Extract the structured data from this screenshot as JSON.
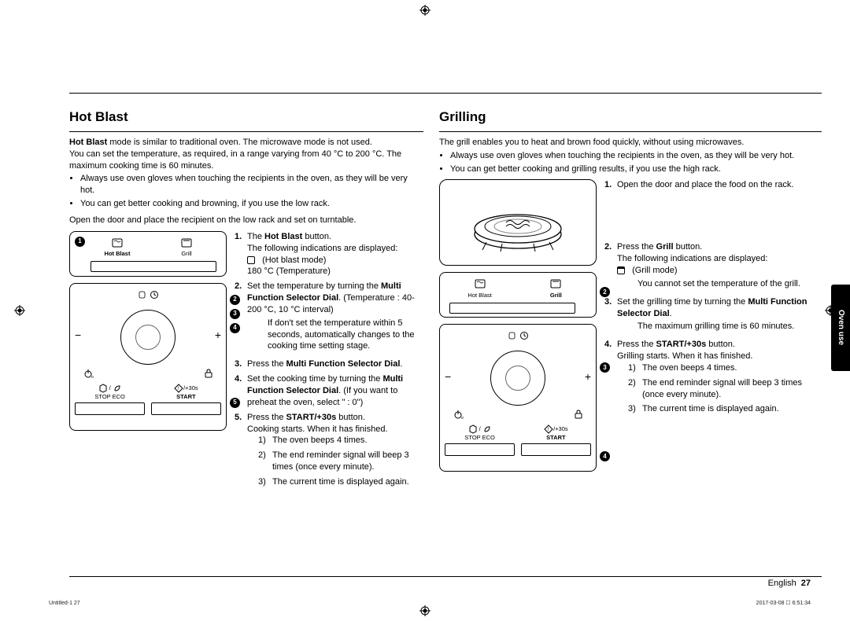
{
  "sidebar": {
    "label": "Oven use"
  },
  "footer": {
    "lang": "English",
    "page": "27",
    "doc_ref": "Untitled-1  27",
    "timestamp": "2017-03-08  ☐ 6:51:34"
  },
  "hotblast": {
    "title": "Hot Blast",
    "intro1_html": "<b>Hot Blast</b> mode is similar to traditional oven. The microwave mode is not used.",
    "intro2": "You can set the temperature, as required, in a range varying from 40 °C to 200 °C. The maximum cooking time is 60 minutes.",
    "bul1": "Always use oven gloves when touching the recipients in the oven, as they will be very hot.",
    "bul2": "You can get better cooking and browning, if you use the low rack.",
    "prestep": "Open the door and place the recipient on the low rack and set on turntable.",
    "s1_html": "The <b>Hot Blast</b> button.",
    "s1b": "The following indications are displayed:",
    "s1c": "(Hot blast mode)",
    "s1d": "180 °C   (Temperature)",
    "s2_html": "Set the temperature by turning the <b>Multi Function Selector Dial</b>. (Temperature : 40-200 °C, 10 °C interval)",
    "s2sub": "If don't set the temperature within 5 seconds, automatically changes to the cooking time setting stage.",
    "s3_html": "Press the <b>Multi Function Selector Dial</b>.",
    "s4_html": "Set the cooking time by turning the <b>Multi Function Selector Dial</b>. (If you want to preheat the oven, select \" : 0\")",
    "s5_html": "Press the <b>START/+30s</b> button.",
    "s5b": "Cooking starts. When it has finished.",
    "s5_1": "The oven beeps 4 times.",
    "s5_2": "The end reminder signal will beep 3 times (once every minute).",
    "s5_3": "The current time is displayed again.",
    "panel": {
      "hotblast_label": "Hot Blast",
      "grill_label": "Grill",
      "stop_eco": "STOP  ECO",
      "start": "START",
      "plus30": "/+30s"
    }
  },
  "grilling": {
    "title": "Grilling",
    "intro1": "The grill enables you to heat and brown food quickly, without using microwaves.",
    "bul1": "Always use oven gloves when touching the recipients in the oven, as they will be very hot.",
    "bul2": "You can get better cooking and grilling results, if you use the high rack.",
    "s1": "Open the door and place the food on the rack.",
    "s2_html": "Press the <b>Grill</b> button.",
    "s2a": "The following indications are displayed:",
    "s2b": "(Grill mode)",
    "s2sub": "You cannot set the temperature of the grill.",
    "s3_html": "Set the grilling time by turning the <b>Multi Function Selector Dial</b>.",
    "s3sub": "The maximum grilling time is 60 minutes.",
    "s4_html": "Press the <b>START/+30s</b> button.",
    "s4a": "Grilling starts. When it has finished.",
    "s4_1": "The oven beeps 4 times.",
    "s4_2": "The end reminder signal will beep 3 times (once every minute).",
    "s4_3": "The current time is displayed again.",
    "panel": {
      "hotblast_label": "Hot Blast",
      "grill_label": "Grill",
      "stop_eco": "STOP  ECO",
      "start": "START",
      "plus30": "/+30s"
    }
  }
}
